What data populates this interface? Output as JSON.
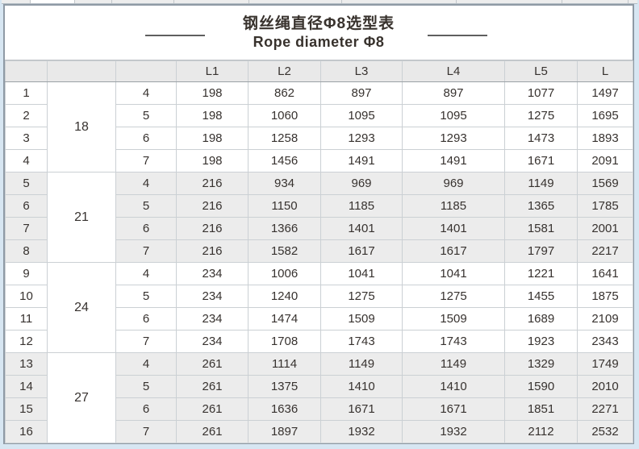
{
  "page_bg": "#d7e6f2",
  "colors": {
    "band_shaded": "#ececec",
    "band_white": "#ffffff",
    "header_bg": "#e9e9e9",
    "grid_line": "#cbd0d4",
    "outer_border": "#8f9aa5"
  },
  "table": {
    "title_cn": "钢丝绳直径Φ8选型表",
    "title_en": "Rope diameter Φ8",
    "headers": [
      "",
      "",
      "",
      "L1",
      "L2",
      "L3",
      "L4",
      "L5",
      "L"
    ],
    "groups": [
      {
        "diameter": "18",
        "shaded": false,
        "rows": [
          {
            "no": "1",
            "falls": "4",
            "l1": "198",
            "l2": "862",
            "l3": "897",
            "l4": "897",
            "l5": "1077",
            "l": "1497"
          },
          {
            "no": "2",
            "falls": "5",
            "l1": "198",
            "l2": "1060",
            "l3": "1095",
            "l4": "1095",
            "l5": "1275",
            "l": "1695"
          },
          {
            "no": "3",
            "falls": "6",
            "l1": "198",
            "l2": "1258",
            "l3": "1293",
            "l4": "1293",
            "l5": "1473",
            "l": "1893"
          },
          {
            "no": "4",
            "falls": "7",
            "l1": "198",
            "l2": "1456",
            "l3": "1491",
            "l4": "1491",
            "l5": "1671",
            "l": "2091"
          }
        ]
      },
      {
        "diameter": "21",
        "shaded": true,
        "rows": [
          {
            "no": "5",
            "falls": "4",
            "l1": "216",
            "l2": "934",
            "l3": "969",
            "l4": "969",
            "l5": "1149",
            "l": "1569"
          },
          {
            "no": "6",
            "falls": "5",
            "l1": "216",
            "l2": "1150",
            "l3": "1185",
            "l4": "1185",
            "l5": "1365",
            "l": "1785"
          },
          {
            "no": "7",
            "falls": "6",
            "l1": "216",
            "l2": "1366",
            "l3": "1401",
            "l4": "1401",
            "l5": "1581",
            "l": "2001"
          },
          {
            "no": "8",
            "falls": "7",
            "l1": "216",
            "l2": "1582",
            "l3": "1617",
            "l4": "1617",
            "l5": "1797",
            "l": "2217"
          }
        ]
      },
      {
        "diameter": "24",
        "shaded": false,
        "rows": [
          {
            "no": "9",
            "falls": "4",
            "l1": "234",
            "l2": "1006",
            "l3": "1041",
            "l4": "1041",
            "l5": "1221",
            "l": "1641"
          },
          {
            "no": "10",
            "falls": "5",
            "l1": "234",
            "l2": "1240",
            "l3": "1275",
            "l4": "1275",
            "l5": "1455",
            "l": "1875"
          },
          {
            "no": "11",
            "falls": "6",
            "l1": "234",
            "l2": "1474",
            "l3": "1509",
            "l4": "1509",
            "l5": "1689",
            "l": "2109"
          },
          {
            "no": "12",
            "falls": "7",
            "l1": "234",
            "l2": "1708",
            "l3": "1743",
            "l4": "1743",
            "l5": "1923",
            "l": "2343"
          }
        ]
      },
      {
        "diameter": "27",
        "shaded": true,
        "rows": [
          {
            "no": "13",
            "falls": "4",
            "l1": "261",
            "l2": "1114",
            "l3": "1149",
            "l4": "1149",
            "l5": "1329",
            "l": "1749"
          },
          {
            "no": "14",
            "falls": "5",
            "l1": "261",
            "l2": "1375",
            "l3": "1410",
            "l4": "1410",
            "l5": "1590",
            "l": "2010"
          },
          {
            "no": "15",
            "falls": "6",
            "l1": "261",
            "l2": "1636",
            "l3": "1671",
            "l4": "1671",
            "l5": "1851",
            "l": "2271"
          },
          {
            "no": "16",
            "falls": "7",
            "l1": "261",
            "l2": "1897",
            "l3": "1932",
            "l4": "1932",
            "l5": "2112",
            "l": "2532"
          }
        ]
      }
    ]
  }
}
